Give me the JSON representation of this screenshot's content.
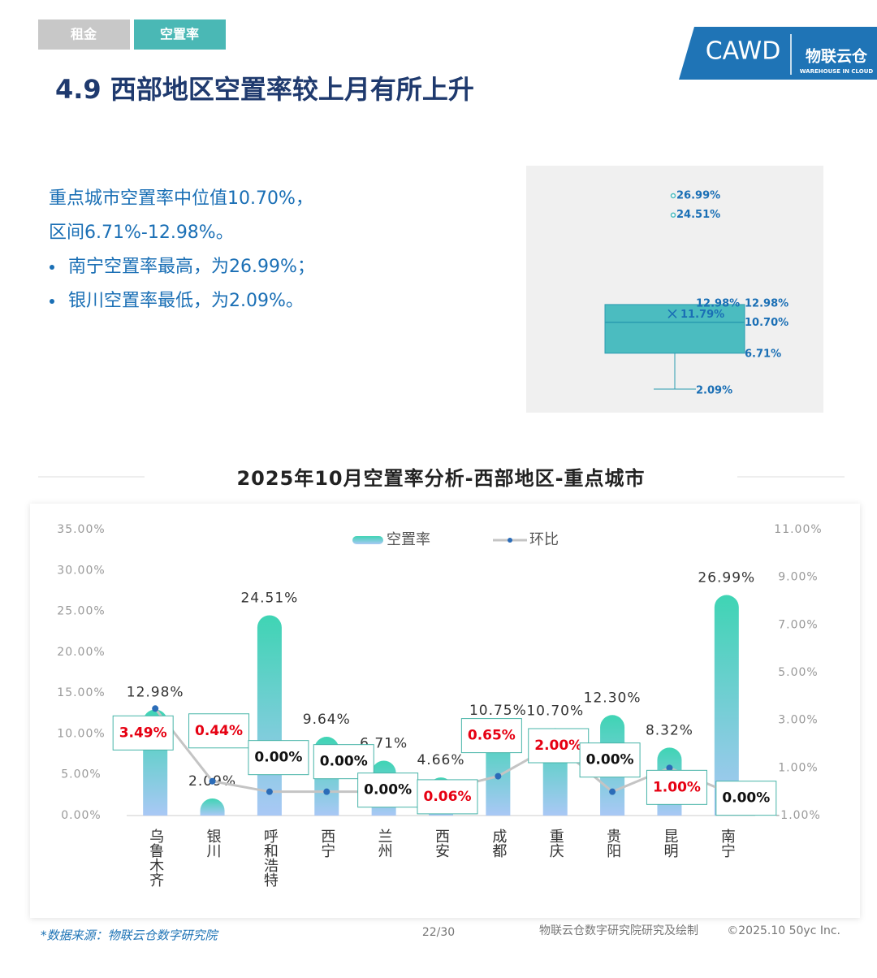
{
  "header": {
    "tabs": [
      "租金",
      "空置率"
    ],
    "logo": {
      "cawd": "CAWD",
      "brand": "物联云仓",
      "brand_en": "WAREHOUSE IN CLOUD"
    },
    "title": "4.9 西部地区空置率较上月有所上升"
  },
  "summary": [
    "重点城市空置率中位值10.70%，",
    "区间6.71%-12.98%。"
  ],
  "bullets": [
    "南宁空置率最高，为26.99%；",
    "银川空置率最低，为2.09%。"
  ],
  "chart_data": [
    {
      "type": "box",
      "color": "#4bbcc0",
      "values": {
        "outliers": [
          26.99,
          24.51
        ],
        "whisker_high": 12.98,
        "q3": 12.98,
        "mean": 11.79,
        "median": 10.7,
        "q1": 6.71,
        "whisker_low": 2.09
      },
      "value_labels": {
        "outliers": [
          "26.99%",
          "24.51%"
        ],
        "whisker_high": "12.98%",
        "q3": "12.98%",
        "mean": "11.79%",
        "median": "10.70%",
        "q1": "6.71%",
        "whisker_low": "2.09%"
      }
    },
    {
      "type": "bar",
      "title": "2025年10月空置率分析-西部地区-重点城市",
      "categories": [
        "乌鲁木齐",
        "银川",
        "呼和浩特",
        "西宁",
        "兰州",
        "西安",
        "成都",
        "重庆",
        "贵阳",
        "昆明",
        "南宁"
      ],
      "series": [
        {
          "name": "空置率",
          "type": "bar",
          "color": "#3fd4b4",
          "color_bottom": "#a9c8f5",
          "values": [
            12.98,
            2.09,
            24.51,
            9.64,
            6.71,
            4.66,
            10.75,
            10.7,
            12.3,
            8.32,
            26.99
          ],
          "value_labels": [
            "12.98%",
            "2.09%",
            "24.51%",
            "9.64%",
            "6.71%",
            "4.66%",
            "10.75%",
            "10.70%",
            "12.30%",
            "8.32%",
            "26.99%"
          ]
        },
        {
          "name": "环比",
          "type": "line",
          "axis": "y2",
          "color": "#c4c4c4",
          "marker_color": "#2b6cb8",
          "label_colors": {
            "positive": "#e60012",
            "zero": "#111111"
          },
          "values": [
            3.49,
            0.44,
            0.0,
            0.0,
            0.0,
            0.06,
            0.65,
            2.0,
            0.0,
            1.0,
            0.0
          ],
          "value_labels": [
            "3.49%",
            "0.44%",
            "0.00%",
            "0.00%",
            "0.00%",
            "0.06%",
            "0.65%",
            "2.00%",
            "0.00%",
            "1.00%",
            "0.00%"
          ]
        }
      ],
      "ylim": [
        0,
        35
      ],
      "yticks": [
        {
          "value": 0,
          "label": "0.00%"
        },
        {
          "value": 5,
          "label": "5.00%"
        },
        {
          "value": 10,
          "label": "10.00%"
        },
        {
          "value": 15,
          "label": "15.00%"
        },
        {
          "value": 20,
          "label": "20.00%"
        },
        {
          "value": 25,
          "label": "25.00%"
        },
        {
          "value": 30,
          "label": "30.00%"
        },
        {
          "value": 35,
          "label": "35.00%"
        }
      ],
      "y2lim": [
        -1,
        11
      ],
      "y2ticks": [
        {
          "value": -1,
          "label": "-1.00%"
        },
        {
          "value": 1,
          "label": "1.00%"
        },
        {
          "value": 3,
          "label": "3.00%"
        },
        {
          "value": 5,
          "label": "5.00%"
        },
        {
          "value": 7,
          "label": "7.00%"
        },
        {
          "value": 9,
          "label": "9.00%"
        },
        {
          "value": 11,
          "label": "11.00%"
        }
      ],
      "legend": "top"
    }
  ],
  "footer": {
    "source": "*数据来源：物联云仓数字研究院",
    "page": "22/30",
    "credit": "物联云仓数字研究院研究及绘制",
    "copyright": "©2025.10 50yc Inc."
  }
}
